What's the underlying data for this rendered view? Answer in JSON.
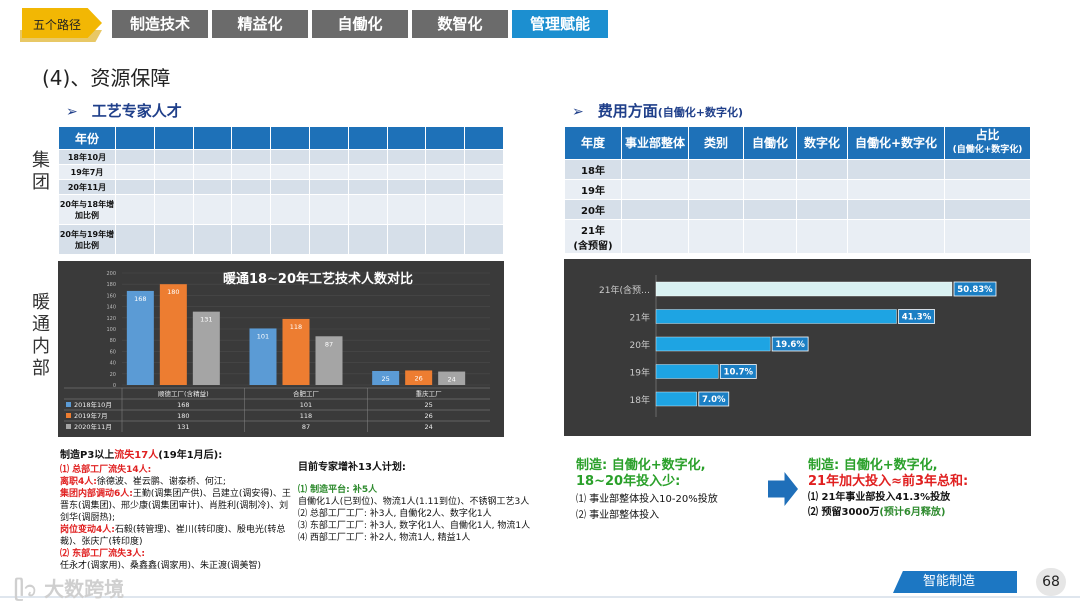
{
  "nav": {
    "path_tag": "五个路径",
    "tabs": [
      "制造技术",
      "精益化",
      "自働化",
      "数智化",
      "管理赋能"
    ],
    "active_tab": 4
  },
  "section_title": "(4)、资源保障",
  "left": {
    "subtitle": "工艺专家人才",
    "group_label": "集团",
    "hvac_label": "暖通内部",
    "table": {
      "header": "年份",
      "rows": [
        "18年10月",
        "19年7月",
        "20年11月",
        "20年与18年增加比例",
        "20年与19年增加比例"
      ]
    },
    "chart": {
      "title": "暖通18~20年工艺技术人数对比"
    },
    "notes": {
      "title_prefix": "制造P3以上",
      "title_red": "流失17人",
      "title_suffix": "(19年1月后):",
      "l1": "⑴ 总部工厂流失14人:",
      "l2_red": "离职4人:",
      "l2": "徐德波、崔云鹏、谢泰桥、何江;",
      "l3_red": "集团内部调动6人:",
      "l3": "王勤(调集团产供)、吕建立(调安得)、王晋东(调集团)、邢少康(调集团审计)、肖胜利(调制冷)、刘剑华(调厨热);",
      "l4_red": "岗位变动4人:",
      "l4": "石毅(转管理)、崔川(转印度)、殷电光(转总裁)、张庆广(转印度)",
      "l5": "⑵ 东部工厂流失3人:",
      "l6": "任永才(调家用)、桑鑫鑫(调家用)、朱正渡(调美智)",
      "plan_title": "目前专家增补13人计划:",
      "p1": "⑴ 制造平台: 补5人",
      "p1b": "自働化1人(已到位)、物流1人(1.11到位)、不锈钢工艺3人",
      "p2": "⑵ 总部工厂工厂: 补3人, 自働化2人、数字化1人",
      "p3": "⑶ 东部工厂工厂: 补3人, 数字化1人、自働化1人, 物流1人",
      "p4": "⑷ 西部工厂工厂: 补2人, 物流1人, 精益1人"
    }
  },
  "right": {
    "subtitle": "费用方面",
    "subtitle_small": "(自働化+数字化)",
    "table": {
      "headers": [
        "年度",
        "事业部整体",
        "类别",
        "自働化",
        "数字化",
        "自働化+数字化",
        "占比",
        "(自働化+数字化)"
      ],
      "rows": [
        "18年",
        "19年",
        "20年",
        "21年",
        "(含预留)"
      ]
    },
    "notes": {
      "left_t1": "制造: 自働化+数字化,",
      "left_t2": "18~20年投入少:",
      "left_1": "⑴ 事业部整体投入10-20%投放",
      "left_2": "⑵ 事业部整体投入",
      "right_t1": "制造: 自働化+数字化,",
      "right_t2": "21年加大投入≈前3年总和:",
      "right_1": "⑴ 21年事业部投入41.3%投放",
      "right_2": "⑵ 预留3000万",
      "right_2g": "(预计6月释放)"
    }
  },
  "chart_data": [
    {
      "type": "bar",
      "title": "暖通18~20年工艺技术人数对比",
      "categories": [
        "顺德工厂(含精益)",
        "合肥工厂",
        "重庆工厂"
      ],
      "series": [
        {
          "name": "2018年10月",
          "values": [
            168,
            101,
            25
          ],
          "color": "#5b9bd5"
        },
        {
          "name": "2019年7月",
          "values": [
            180,
            118,
            26
          ],
          "color": "#ed7d31"
        },
        {
          "name": "2020年11月",
          "values": [
            131,
            87,
            24
          ],
          "color": "#a5a5a5"
        }
      ],
      "y_ticks": [
        0,
        20,
        40,
        60,
        80,
        100,
        120,
        140,
        160,
        180,
        200
      ],
      "ylim": [
        0,
        200
      ],
      "legend": "data table below"
    },
    {
      "type": "bar",
      "orientation": "horizontal",
      "categories": [
        "21年(含预…",
        "21年",
        "20年",
        "19年",
        "18年"
      ],
      "values": [
        50.83,
        41.3,
        19.6,
        10.7,
        7.0
      ],
      "labels": [
        "50.83%",
        "41.3%",
        "19.6%",
        "10.7%",
        "7.0%"
      ],
      "colors": [
        "#d9f1f2",
        "#1ea4e3",
        "#1ea4e3",
        "#1ea4e3",
        "#1ea4e3"
      ]
    }
  ],
  "footer": {
    "tag": "智能制造",
    "page": "68",
    "watermark": "大数跨境"
  }
}
